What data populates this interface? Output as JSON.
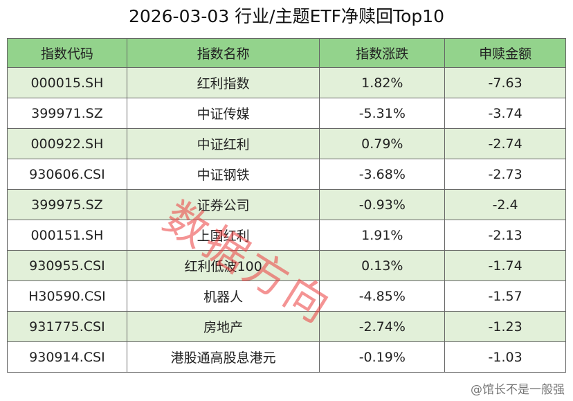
{
  "header": {
    "title": "2026-03-03 行业/主题ETF净赎回Top10"
  },
  "table": {
    "columns": [
      "指数代码",
      "指数名称",
      "指数涨跌",
      "申赎金额"
    ],
    "rows": [
      [
        "000015.SH",
        "红利指数",
        "1.82%",
        "-7.63"
      ],
      [
        "399971.SZ",
        "中证传媒",
        "-5.31%",
        "-3.74"
      ],
      [
        "000922.SH",
        "中证红利",
        "0.79%",
        "-2.74"
      ],
      [
        "930606.CSI",
        "中证钢铁",
        "-3.68%",
        "-2.73"
      ],
      [
        "399975.SZ",
        "证券公司",
        "-0.93%",
        "-2.4"
      ],
      [
        "000151.SH",
        "上国红利",
        "1.91%",
        "-2.13"
      ],
      [
        "930955.CSI",
        "红利低波100",
        "0.13%",
        "-1.74"
      ],
      [
        "H30590.CSI",
        "机器人",
        "-4.85%",
        "-1.57"
      ],
      [
        "931775.CSI",
        "房地产",
        "-2.74%",
        "-1.23"
      ],
      [
        "930914.CSI",
        "港股通高股息港元",
        "-0.19%",
        "-1.03"
      ]
    ]
  },
  "watermark": "数据方向",
  "footer": {
    "credit": "@馆长不是一般强"
  }
}
